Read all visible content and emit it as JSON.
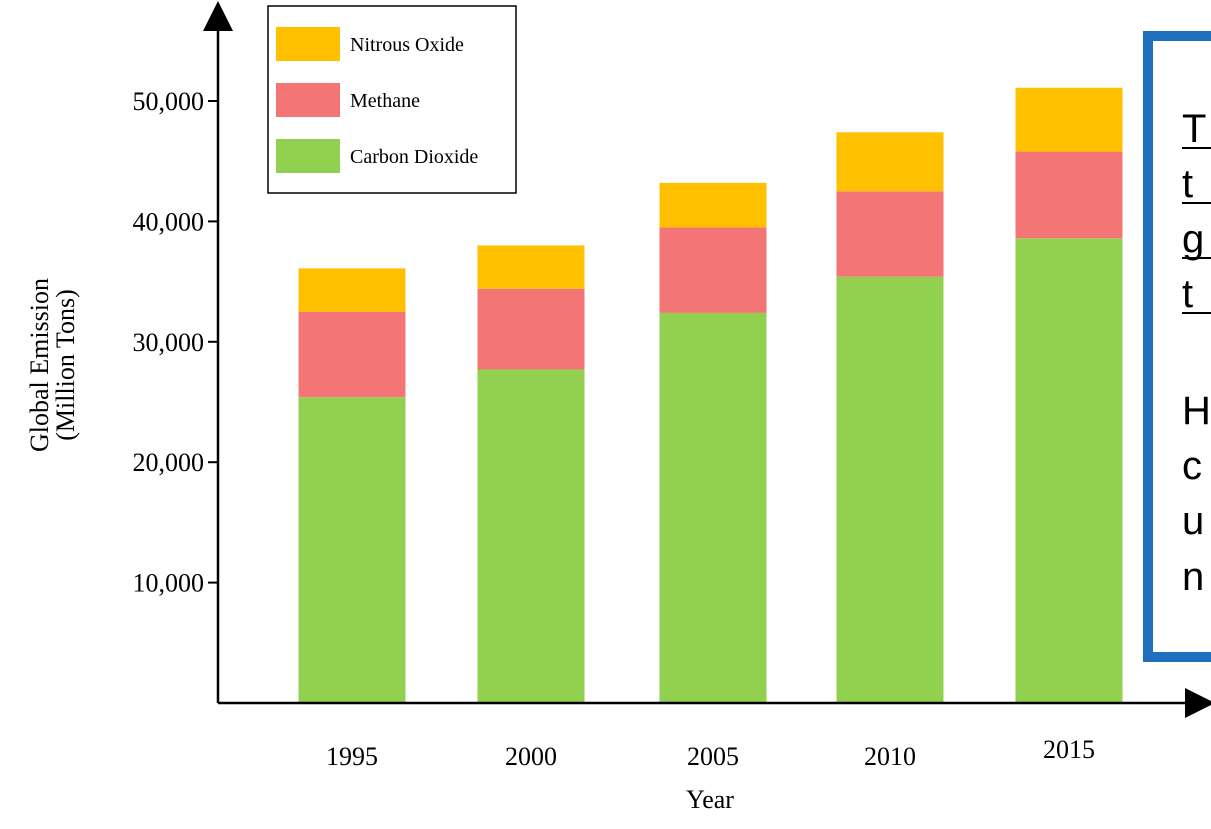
{
  "chart_data": {
    "type": "bar",
    "stacked": true,
    "categories": [
      "1995",
      "2000",
      "2005",
      "2010",
      "2015"
    ],
    "series": [
      {
        "name": "Carbon Dioxide",
        "values": [
          25400,
          27700,
          32400,
          35400,
          38600
        ],
        "color": "#92d050"
      },
      {
        "name": "Methane",
        "values": [
          7100,
          6700,
          7100,
          7100,
          7200
        ],
        "color": "#f47575"
      },
      {
        "name": "Nitrous Oxide",
        "values": [
          3600,
          3600,
          3700,
          4900,
          5300
        ],
        "color": "#ffc000"
      }
    ],
    "title": "",
    "xlabel": "Year",
    "ylabel": [
      "Global Emission",
      "(Million Tons)"
    ],
    "yticks": [
      "10,000",
      "20,000",
      "30,000",
      "40,000",
      "50,000"
    ],
    "ytick_values": [
      10000,
      20000,
      30000,
      40000,
      50000
    ],
    "ylim": [
      0,
      50000
    ],
    "grid": false,
    "legend_position": "top-left",
    "legend_order": [
      "Nitrous Oxide",
      "Methane",
      "Carbon Dioxide"
    ]
  },
  "side_panel": {
    "border_color": "#1f6fbf",
    "text_lines": [
      "T",
      "t",
      "g",
      "t",
      "H",
      "c",
      "u",
      "n"
    ]
  }
}
